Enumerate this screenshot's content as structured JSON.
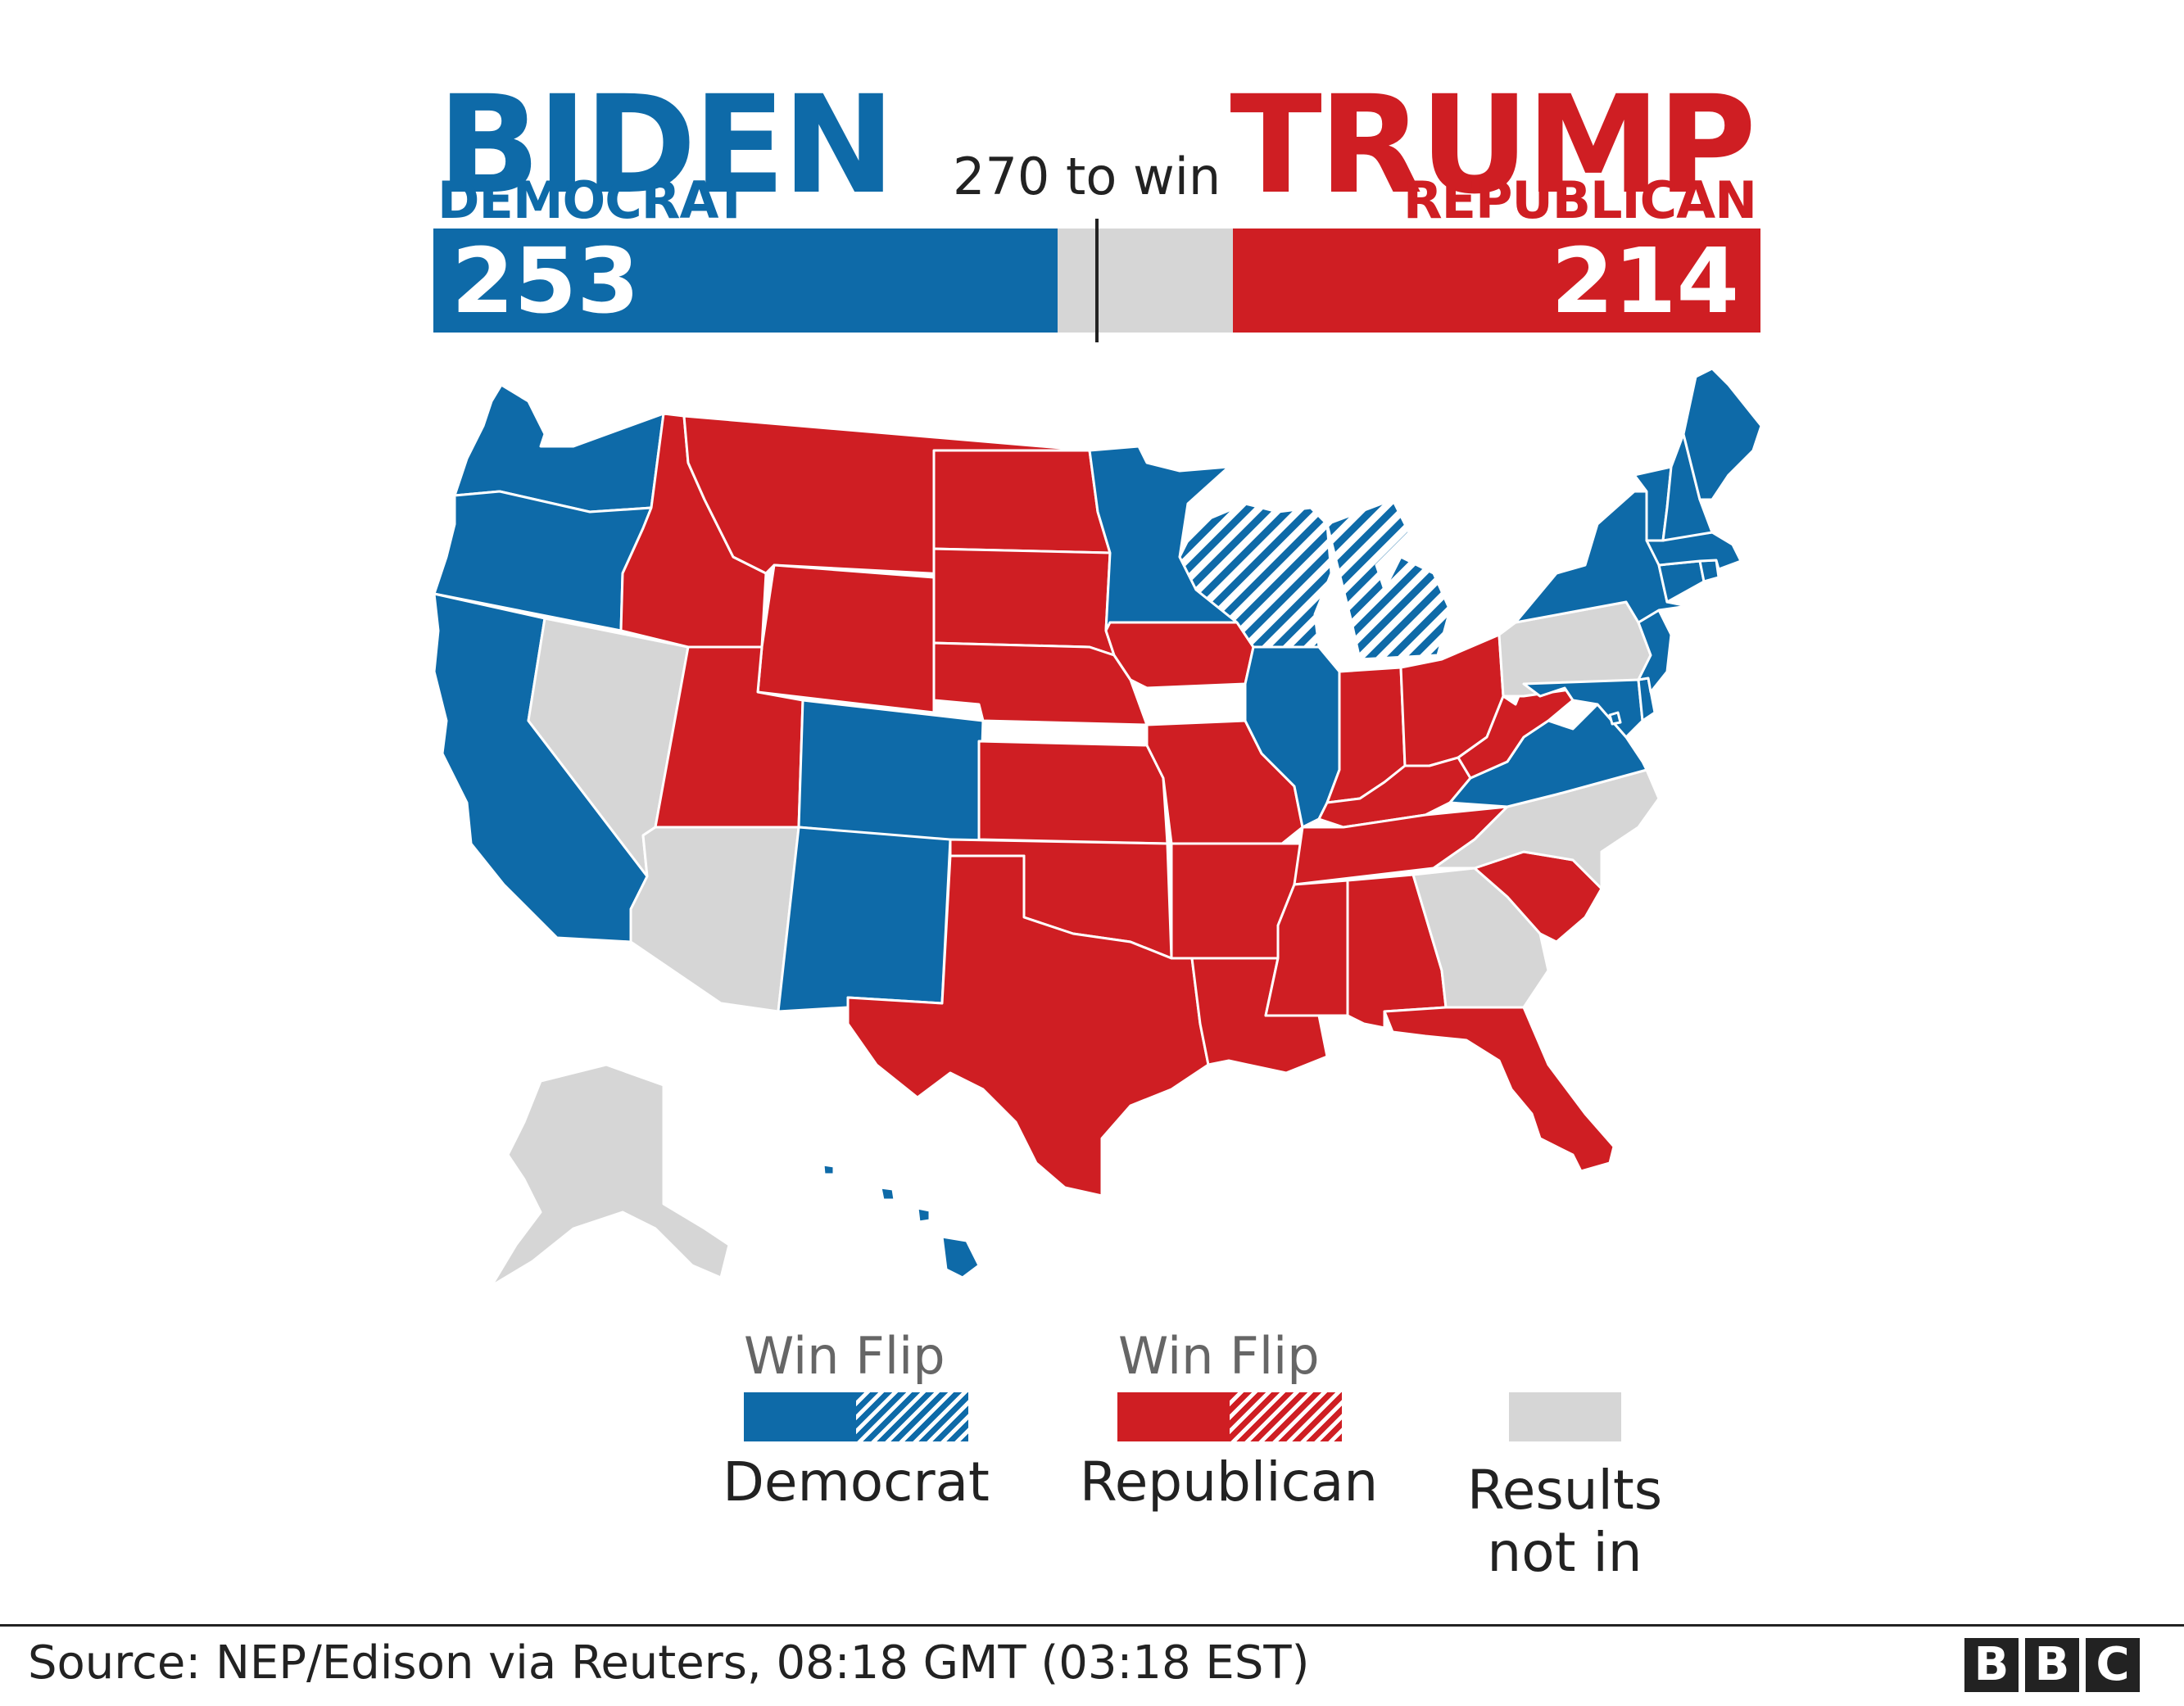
{
  "candidates": {
    "dem": {
      "name": "BIDEN",
      "party": "DEMOCRAT",
      "votes": 253,
      "color": "#0e6aa8"
    },
    "rep": {
      "name": "TRUMP",
      "party": "REPUBLICAN",
      "votes": 214,
      "color": "#cf1e23"
    }
  },
  "threshold": {
    "label": "270 to win",
    "value": 270
  },
  "bar_total": 538,
  "legend": {
    "dem": {
      "top": "Win Flip",
      "label": "Democrat"
    },
    "rep": {
      "top": "Win Flip",
      "label": "Republican"
    },
    "none": {
      "label_line1": "Results",
      "label_line2": "not in"
    }
  },
  "colors": {
    "dem": "#0e6aa8",
    "rep": "#cf1e23",
    "none": "#d6d6d6",
    "border": "#ffffff"
  },
  "states": {
    "dem": [
      "WA",
      "OR",
      "CA",
      "CO",
      "NM",
      "MN",
      "IL",
      "VA",
      "NY",
      "NJ",
      "MD",
      "DE",
      "CT",
      "RI",
      "MA",
      "VT",
      "NH",
      "ME",
      "HI",
      "DC"
    ],
    "dem_flip": [
      "WI",
      "MI"
    ],
    "rep": [
      "ID",
      "MT",
      "WY",
      "UT",
      "ND",
      "SD",
      "NE",
      "KS",
      "OK",
      "TX",
      "IA",
      "MO",
      "AR",
      "LA",
      "MS",
      "AL",
      "TN",
      "KY",
      "IN",
      "OH",
      "WV",
      "SC",
      "FL"
    ],
    "rep_flip": [],
    "none": [
      "NV",
      "AZ",
      "AK",
      "PA",
      "NC",
      "GA"
    ]
  },
  "source": "Source: NEP/Edison via Reuters, 08:18 GMT (03:18 EST)",
  "logo": [
    "B",
    "B",
    "C"
  ]
}
